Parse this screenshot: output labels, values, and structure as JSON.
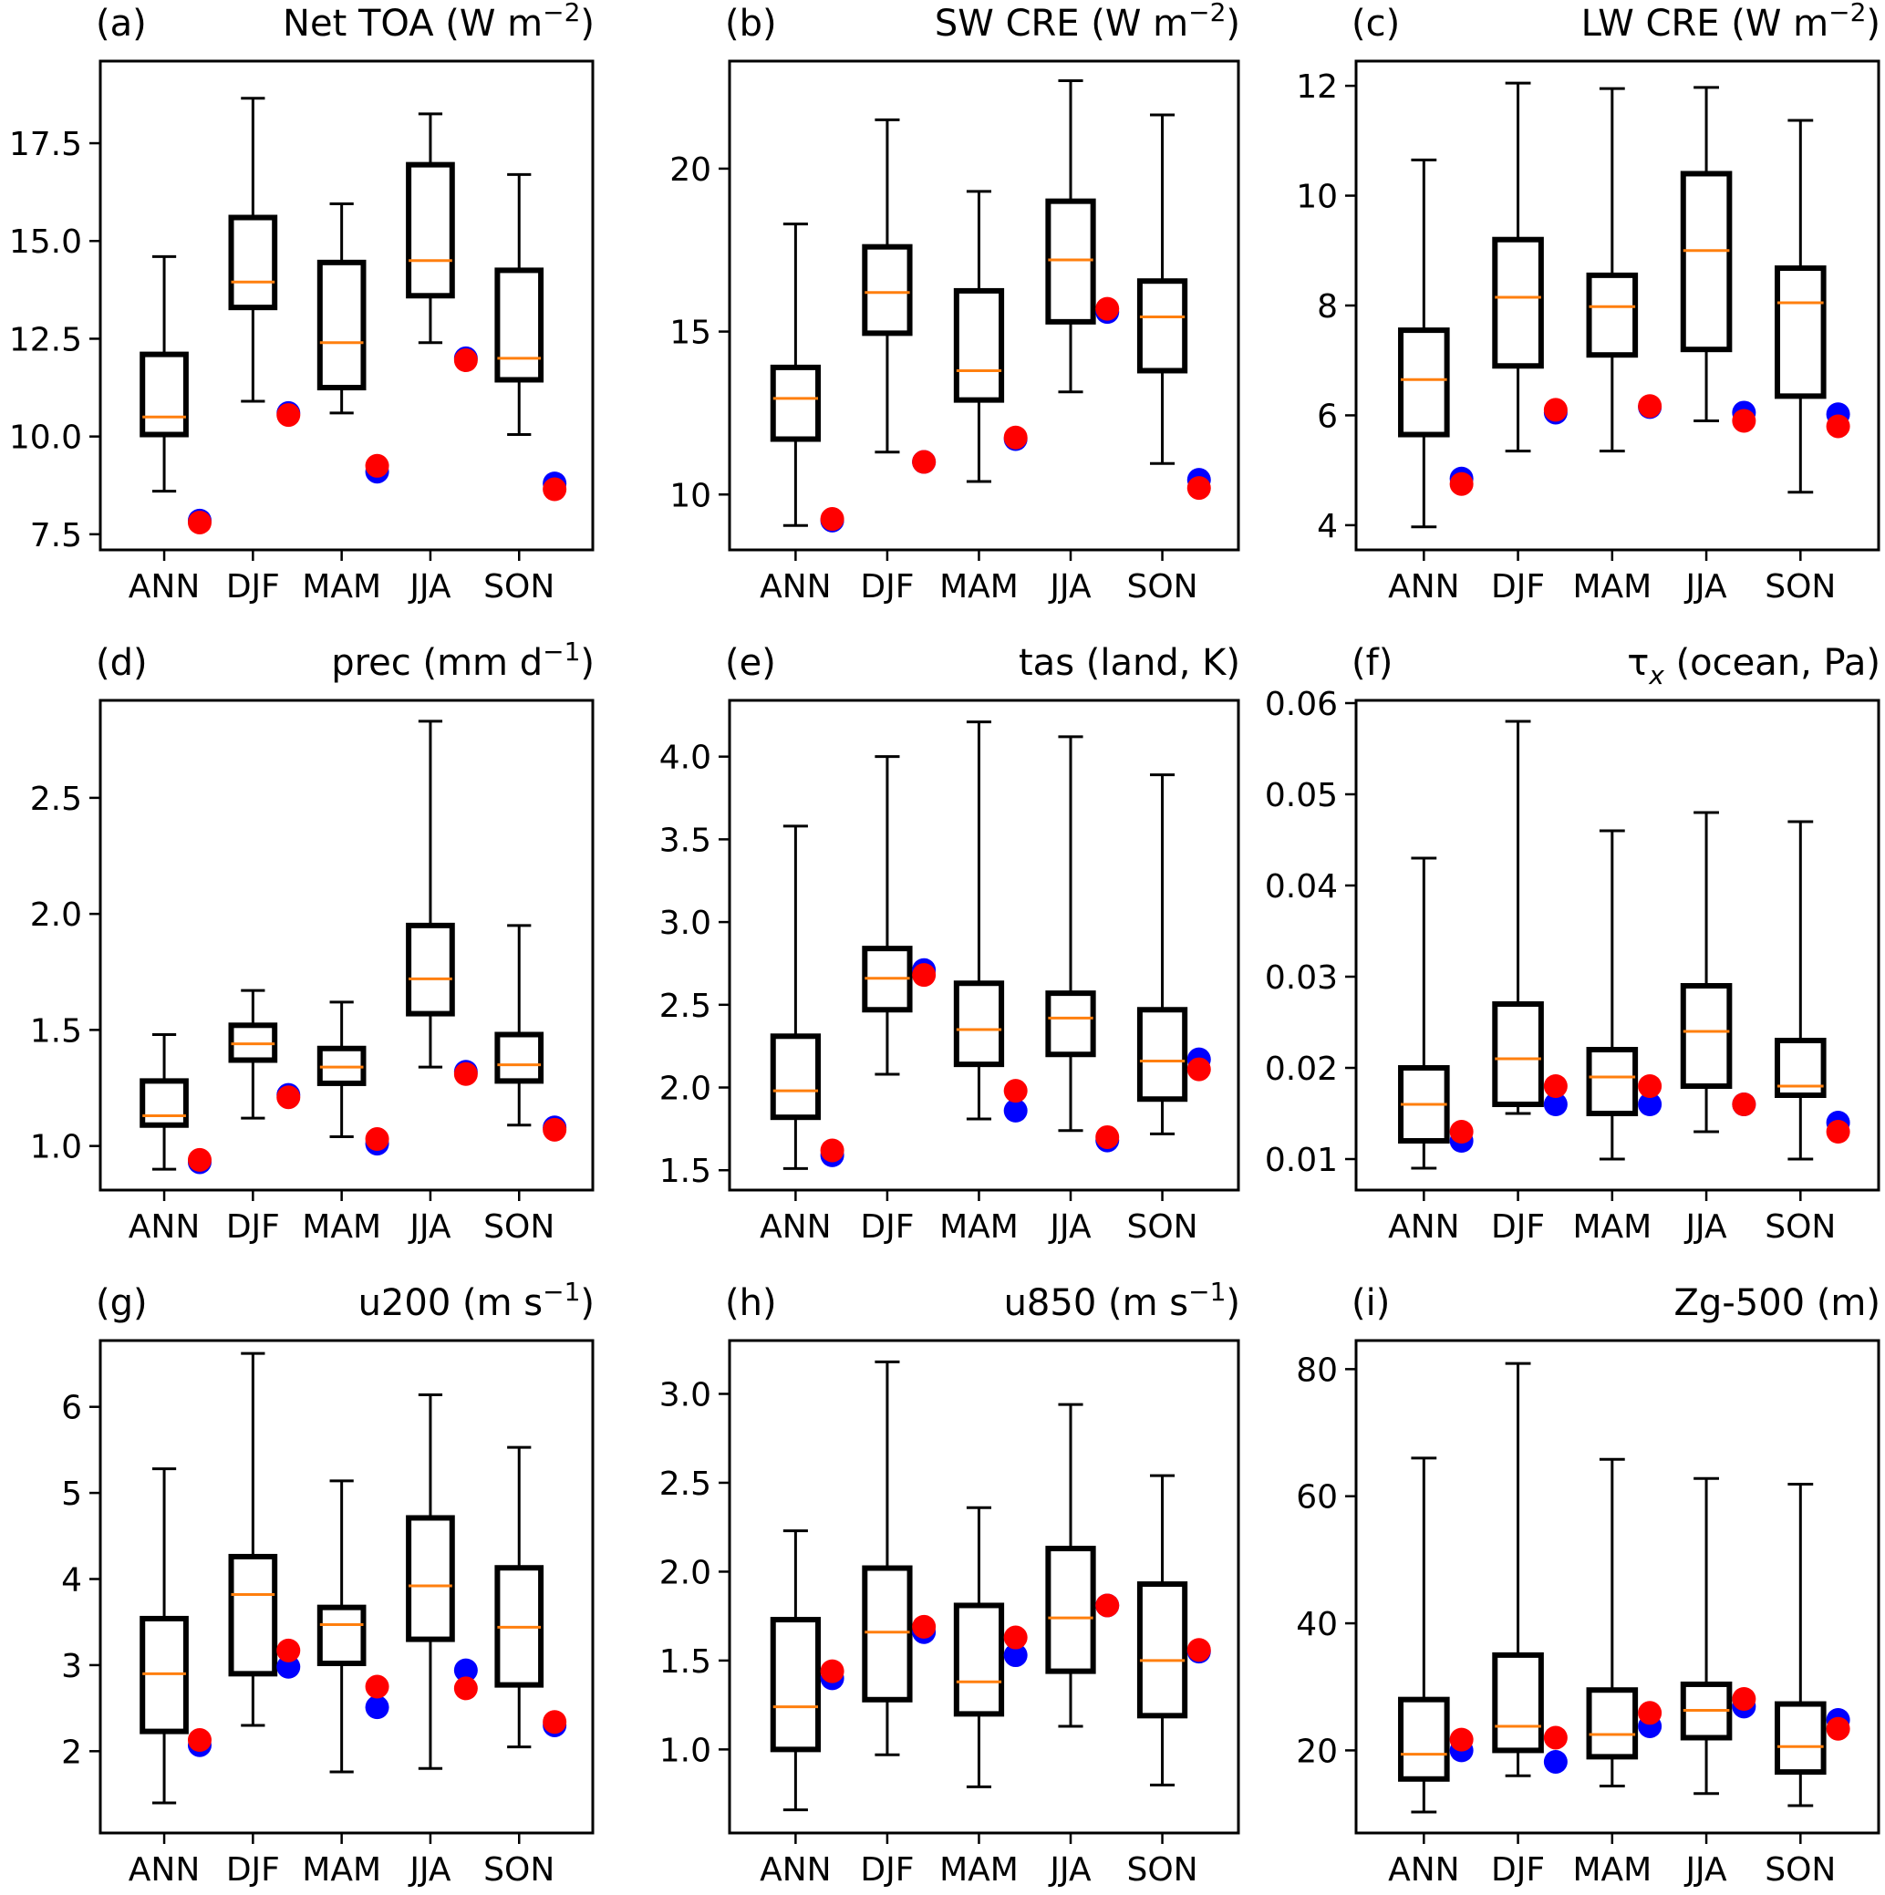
{
  "chart_data": [
    {
      "type": "box",
      "panel_label": "(a)",
      "title": "Net TOA (W m",
      "title_sup": "−2",
      "title_suffix": ")",
      "categories": [
        "ANN",
        "DJF",
        "MAM",
        "JJA",
        "SON"
      ],
      "ylim": [
        7.1,
        19.6
      ],
      "yticks": [
        7.5,
        10.0,
        12.5,
        15.0,
        17.5
      ],
      "ytick_labels": [
        "7.5",
        "10.0",
        "12.5",
        "15.0",
        "17.5"
      ],
      "boxes": [
        {
          "whisker_low": 8.6,
          "q1": 10.05,
          "median": 10.5,
          "q3": 12.1,
          "whisker_high": 14.6
        },
        {
          "whisker_low": 10.9,
          "q1": 13.3,
          "median": 13.95,
          "q3": 15.6,
          "whisker_high": 18.65
        },
        {
          "whisker_low": 10.6,
          "q1": 11.25,
          "median": 12.4,
          "q3": 14.45,
          "whisker_high": 15.95
        },
        {
          "whisker_low": 12.4,
          "q1": 13.6,
          "median": 14.5,
          "q3": 16.95,
          "whisker_high": 18.25
        },
        {
          "whisker_low": 10.05,
          "q1": 11.45,
          "median": 12.0,
          "q3": 14.25,
          "whisker_high": 16.7
        }
      ],
      "series": [
        {
          "name": "blue",
          "color": "#0000ff",
          "values": [
            7.85,
            10.6,
            9.1,
            12.0,
            8.8
          ]
        },
        {
          "name": "red",
          "color": "#ff0000",
          "values": [
            7.8,
            10.55,
            9.25,
            11.95,
            8.65
          ]
        }
      ]
    },
    {
      "type": "box",
      "panel_label": "(b)",
      "title": "SW CRE (W m",
      "title_sup": "−2",
      "title_suffix": ")",
      "categories": [
        "ANN",
        "DJF",
        "MAM",
        "JJA",
        "SON"
      ],
      "ylim": [
        8.3,
        23.3
      ],
      "yticks": [
        10,
        15,
        20
      ],
      "ytick_labels": [
        "10",
        "15",
        "20"
      ],
      "boxes": [
        {
          "whisker_low": 9.05,
          "q1": 11.7,
          "median": 12.95,
          "q3": 13.9,
          "whisker_high": 18.3
        },
        {
          "whisker_low": 11.3,
          "q1": 14.95,
          "median": 16.2,
          "q3": 17.6,
          "whisker_high": 21.5
        },
        {
          "whisker_low": 10.4,
          "q1": 12.9,
          "median": 13.8,
          "q3": 16.25,
          "whisker_high": 19.3
        },
        {
          "whisker_low": 13.15,
          "q1": 15.3,
          "median": 17.2,
          "q3": 19.0,
          "whisker_high": 22.7
        },
        {
          "whisker_low": 10.95,
          "q1": 13.8,
          "median": 15.45,
          "q3": 16.55,
          "whisker_high": 21.65
        }
      ],
      "series": [
        {
          "name": "blue",
          "color": "#0000ff",
          "values": [
            9.2,
            11.0,
            11.7,
            15.6,
            10.45
          ]
        },
        {
          "name": "red",
          "color": "#ff0000",
          "values": [
            9.25,
            11.0,
            11.75,
            15.7,
            10.2
          ]
        }
      ]
    },
    {
      "type": "box",
      "panel_label": "(c)",
      "title": "LW CRE (W m",
      "title_sup": "−2",
      "title_suffix": ")",
      "categories": [
        "ANN",
        "DJF",
        "MAM",
        "JJA",
        "SON"
      ],
      "ylim": [
        3.55,
        12.45
      ],
      "yticks": [
        4,
        6,
        8,
        10,
        12
      ],
      "ytick_labels": [
        "4",
        "6",
        "8",
        "10",
        "12"
      ],
      "boxes": [
        {
          "whisker_low": 3.97,
          "q1": 5.65,
          "median": 6.65,
          "q3": 7.55,
          "whisker_high": 10.65
        },
        {
          "whisker_low": 5.35,
          "q1": 6.9,
          "median": 8.15,
          "q3": 9.2,
          "whisker_high": 12.05
        },
        {
          "whisker_low": 5.35,
          "q1": 7.1,
          "median": 7.98,
          "q3": 8.55,
          "whisker_high": 11.95
        },
        {
          "whisker_low": 5.9,
          "q1": 7.2,
          "median": 9.0,
          "q3": 10.4,
          "whisker_high": 11.97
        },
        {
          "whisker_low": 4.6,
          "q1": 6.35,
          "median": 8.05,
          "q3": 8.68,
          "whisker_high": 11.37
        }
      ],
      "series": [
        {
          "name": "blue",
          "color": "#0000ff",
          "values": [
            4.85,
            6.05,
            6.15,
            6.05,
            6.02
          ]
        },
        {
          "name": "red",
          "color": "#ff0000",
          "values": [
            4.75,
            6.1,
            6.17,
            5.9,
            5.8
          ]
        }
      ]
    },
    {
      "type": "box",
      "panel_label": "(d)",
      "title": "prec (mm d",
      "title_sup": "−1",
      "title_suffix": ")",
      "categories": [
        "ANN",
        "DJF",
        "MAM",
        "JJA",
        "SON"
      ],
      "ylim": [
        0.81,
        2.92
      ],
      "yticks": [
        1.0,
        1.5,
        2.0,
        2.5
      ],
      "ytick_labels": [
        "1.0",
        "1.5",
        "2.0",
        "2.5"
      ],
      "boxes": [
        {
          "whisker_low": 0.9,
          "q1": 1.09,
          "median": 1.13,
          "q3": 1.28,
          "whisker_high": 1.48
        },
        {
          "whisker_low": 1.12,
          "q1": 1.37,
          "median": 1.44,
          "q3": 1.52,
          "whisker_high": 1.67
        },
        {
          "whisker_low": 1.04,
          "q1": 1.27,
          "median": 1.34,
          "q3": 1.42,
          "whisker_high": 1.62
        },
        {
          "whisker_low": 1.34,
          "q1": 1.57,
          "median": 1.72,
          "q3": 1.95,
          "whisker_high": 2.83
        },
        {
          "whisker_low": 1.09,
          "q1": 1.28,
          "median": 1.35,
          "q3": 1.48,
          "whisker_high": 1.95
        }
      ],
      "series": [
        {
          "name": "blue",
          "color": "#0000ff",
          "values": [
            0.93,
            1.22,
            1.01,
            1.32,
            1.08
          ]
        },
        {
          "name": "red",
          "color": "#ff0000",
          "values": [
            0.94,
            1.21,
            1.03,
            1.31,
            1.07
          ]
        }
      ]
    },
    {
      "type": "box",
      "panel_label": "(e)",
      "title": "tas (land, K)",
      "title_sup": "",
      "title_suffix": "",
      "categories": [
        "ANN",
        "DJF",
        "MAM",
        "JJA",
        "SON"
      ],
      "ylim": [
        1.38,
        4.34
      ],
      "yticks": [
        1.5,
        2.0,
        2.5,
        3.0,
        3.5,
        4.0
      ],
      "ytick_labels": [
        "1.5",
        "2.0",
        "2.5",
        "3.0",
        "3.5",
        "4.0"
      ],
      "boxes": [
        {
          "whisker_low": 1.51,
          "q1": 1.82,
          "median": 1.98,
          "q3": 2.31,
          "whisker_high": 3.58
        },
        {
          "whisker_low": 2.08,
          "q1": 2.47,
          "median": 2.66,
          "q3": 2.84,
          "whisker_high": 4.0
        },
        {
          "whisker_low": 1.81,
          "q1": 2.14,
          "median": 2.35,
          "q3": 2.63,
          "whisker_high": 4.21
        },
        {
          "whisker_low": 1.74,
          "q1": 2.2,
          "median": 2.42,
          "q3": 2.57,
          "whisker_high": 4.12
        },
        {
          "whisker_low": 1.72,
          "q1": 1.93,
          "median": 2.16,
          "q3": 2.47,
          "whisker_high": 3.89
        }
      ],
      "series": [
        {
          "name": "blue",
          "color": "#0000ff",
          "values": [
            1.59,
            2.71,
            1.86,
            1.68,
            2.17
          ]
        },
        {
          "name": "red",
          "color": "#ff0000",
          "values": [
            1.62,
            2.68,
            1.98,
            1.7,
            2.11
          ]
        }
      ]
    },
    {
      "type": "box",
      "panel_label": "(f)",
      "title": "τ",
      "title_sub": "x",
      "title_suffix": " (ocean, Pa)",
      "categories": [
        "ANN",
        "DJF",
        "MAM",
        "JJA",
        "SON"
      ],
      "ylim": [
        0.0066,
        0.0603
      ],
      "yticks": [
        0.01,
        0.02,
        0.03,
        0.04,
        0.05,
        0.06
      ],
      "ytick_labels": [
        "0.01",
        "0.02",
        "0.03",
        "0.04",
        "0.05",
        "0.06"
      ],
      "boxes": [
        {
          "whisker_low": 0.009,
          "q1": 0.012,
          "median": 0.016,
          "q3": 0.02,
          "whisker_high": 0.043
        },
        {
          "whisker_low": 0.015,
          "q1": 0.016,
          "median": 0.021,
          "q3": 0.027,
          "whisker_high": 0.058
        },
        {
          "whisker_low": 0.01,
          "q1": 0.015,
          "median": 0.019,
          "q3": 0.022,
          "whisker_high": 0.046
        },
        {
          "whisker_low": 0.013,
          "q1": 0.018,
          "median": 0.024,
          "q3": 0.029,
          "whisker_high": 0.048
        },
        {
          "whisker_low": 0.01,
          "q1": 0.017,
          "median": 0.018,
          "q3": 0.023,
          "whisker_high": 0.047
        }
      ],
      "series": [
        {
          "name": "blue",
          "color": "#0000ff",
          "values": [
            0.012,
            0.016,
            0.016,
            0.016,
            0.014
          ]
        },
        {
          "name": "red",
          "color": "#ff0000",
          "values": [
            0.013,
            0.018,
            0.018,
            0.016,
            0.013
          ]
        }
      ]
    },
    {
      "type": "box",
      "panel_label": "(g)",
      "title": "u200 (m s",
      "title_sup": "−1",
      "title_suffix": ")",
      "categories": [
        "ANN",
        "DJF",
        "MAM",
        "JJA",
        "SON"
      ],
      "ylim": [
        1.05,
        6.77
      ],
      "yticks": [
        2,
        3,
        4,
        5,
        6
      ],
      "ytick_labels": [
        "2",
        "3",
        "4",
        "5",
        "6"
      ],
      "boxes": [
        {
          "whisker_low": 1.4,
          "q1": 2.23,
          "median": 2.9,
          "q3": 3.54,
          "whisker_high": 5.28
        },
        {
          "whisker_low": 2.3,
          "q1": 2.9,
          "median": 3.82,
          "q3": 4.26,
          "whisker_high": 6.62
        },
        {
          "whisker_low": 1.76,
          "q1": 3.02,
          "median": 3.47,
          "q3": 3.67,
          "whisker_high": 5.14
        },
        {
          "whisker_low": 1.8,
          "q1": 3.3,
          "median": 3.92,
          "q3": 4.71,
          "whisker_high": 6.14
        },
        {
          "whisker_low": 2.05,
          "q1": 2.77,
          "median": 3.44,
          "q3": 4.13,
          "whisker_high": 5.53
        }
      ],
      "series": [
        {
          "name": "blue",
          "color": "#0000ff",
          "values": [
            2.07,
            2.98,
            2.51,
            2.94,
            2.3
          ]
        },
        {
          "name": "red",
          "color": "#ff0000",
          "values": [
            2.13,
            3.17,
            2.75,
            2.73,
            2.34
          ]
        }
      ]
    },
    {
      "type": "box",
      "panel_label": "(h)",
      "title": "u850 (m s",
      "title_sup": "−1",
      "title_suffix": ")",
      "categories": [
        "ANN",
        "DJF",
        "MAM",
        "JJA",
        "SON"
      ],
      "ylim": [
        0.53,
        3.3
      ],
      "yticks": [
        1.0,
        1.5,
        2.0,
        2.5,
        3.0
      ],
      "ytick_labels": [
        "1.0",
        "1.5",
        "2.0",
        "2.5",
        "3.0"
      ],
      "boxes": [
        {
          "whisker_low": 0.66,
          "q1": 1.0,
          "median": 1.24,
          "q3": 1.73,
          "whisker_high": 2.23
        },
        {
          "whisker_low": 0.97,
          "q1": 1.28,
          "median": 1.66,
          "q3": 2.02,
          "whisker_high": 3.18
        },
        {
          "whisker_low": 0.79,
          "q1": 1.2,
          "median": 1.38,
          "q3": 1.81,
          "whisker_high": 2.36
        },
        {
          "whisker_low": 1.13,
          "q1": 1.44,
          "median": 1.74,
          "q3": 2.13,
          "whisker_high": 2.94
        },
        {
          "whisker_low": 0.8,
          "q1": 1.19,
          "median": 1.5,
          "q3": 1.93,
          "whisker_high": 2.54
        }
      ],
      "series": [
        {
          "name": "blue",
          "color": "#0000ff",
          "values": [
            1.4,
            1.66,
            1.53,
            1.81,
            1.55
          ]
        },
        {
          "name": "red",
          "color": "#ff0000",
          "values": [
            1.44,
            1.69,
            1.63,
            1.81,
            1.56
          ]
        }
      ]
    },
    {
      "type": "box",
      "panel_label": "(i)",
      "title": "Zg-500 (m)",
      "title_sup": "",
      "title_suffix": "",
      "categories": [
        "ANN",
        "DJF",
        "MAM",
        "JJA",
        "SON"
      ],
      "ylim": [
        7,
        84.5
      ],
      "yticks": [
        20,
        40,
        60,
        80
      ],
      "ytick_labels": [
        "20",
        "40",
        "60",
        "80"
      ],
      "boxes": [
        {
          "whisker_low": 10.3,
          "q1": 15.5,
          "median": 19.4,
          "q3": 28.0,
          "whisker_high": 66.0
        },
        {
          "whisker_low": 16.0,
          "q1": 20.0,
          "median": 23.8,
          "q3": 35.0,
          "whisker_high": 80.9
        },
        {
          "whisker_low": 14.4,
          "q1": 19.0,
          "median": 22.5,
          "q3": 29.5,
          "whisker_high": 65.8
        },
        {
          "whisker_low": 13.2,
          "q1": 22.0,
          "median": 26.3,
          "q3": 30.4,
          "whisker_high": 62.8
        },
        {
          "whisker_low": 11.3,
          "q1": 16.6,
          "median": 20.6,
          "q3": 27.3,
          "whisker_high": 61.9
        }
      ],
      "series": [
        {
          "name": "blue",
          "color": "#0000ff",
          "values": [
            20.0,
            18.2,
            23.8,
            26.9,
            24.8
          ]
        },
        {
          "name": "red",
          "color": "#ff0000",
          "values": [
            21.7,
            22.0,
            25.9,
            28.1,
            23.4
          ]
        }
      ]
    }
  ],
  "style": {
    "median_color": "#ff7f0e",
    "box_color": "#000000"
  }
}
